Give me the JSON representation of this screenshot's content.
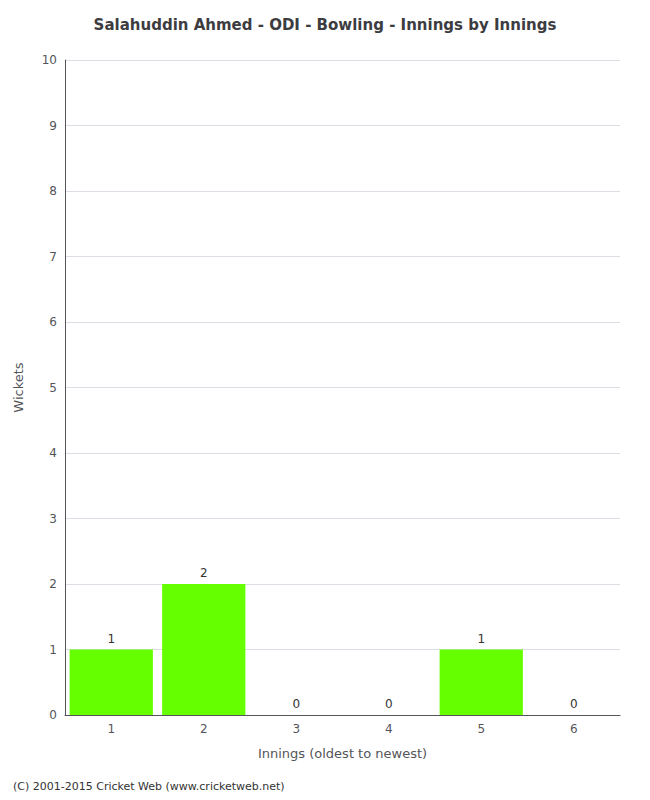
{
  "chart_data": {
    "type": "bar",
    "title": "Salahuddin Ahmed - ODI - Bowling - Innings by Innings",
    "categories": [
      1,
      2,
      3,
      4,
      5,
      6
    ],
    "values": [
      1,
      2,
      0,
      0,
      1,
      0
    ],
    "color": "#66ff00",
    "xlabel": "Innings (oldest to newest)",
    "ylabel": "Wickets",
    "ylim": [
      0,
      10
    ],
    "yticks": [
      0,
      1,
      2,
      3,
      4,
      5,
      6,
      7,
      8,
      9,
      10
    ],
    "grid": true,
    "data_labels": true,
    "annotations": [
      "(C) 2001-2015 Cricket Web (www.cricketweb.net)"
    ]
  }
}
